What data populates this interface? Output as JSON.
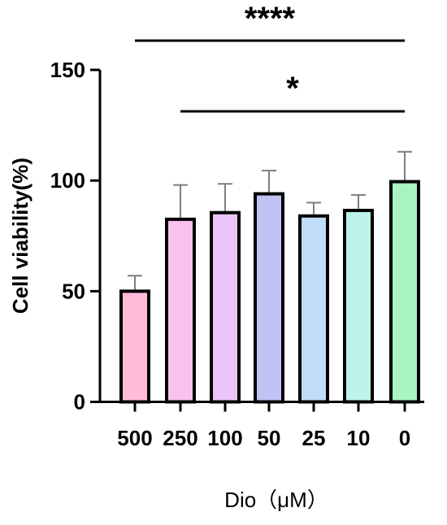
{
  "chart_data": {
    "type": "bar",
    "categories": [
      "500",
      "250",
      "100",
      "50",
      "25",
      "10",
      "0"
    ],
    "values": [
      50,
      82.5,
      85.5,
      94,
      84,
      86.5,
      99.5
    ],
    "errors": [
      7,
      15.5,
      13,
      10.5,
      6,
      7,
      13.5
    ],
    "colors": [
      "#ffbbd8",
      "#f9c2ec",
      "#eec4f8",
      "#c0c2f6",
      "#bfdcf8",
      "#bdf3ea",
      "#a9f4c2"
    ],
    "xlabel": "Dio（μM）",
    "ylabel": "Cell viability(%)",
    "ylim": [
      0,
      150
    ],
    "yticks": [
      0,
      50,
      100,
      150
    ],
    "significance": [
      {
        "from": "500",
        "to": "0",
        "label": "****"
      },
      {
        "from": "250",
        "to": "0",
        "label": "*"
      }
    ]
  }
}
